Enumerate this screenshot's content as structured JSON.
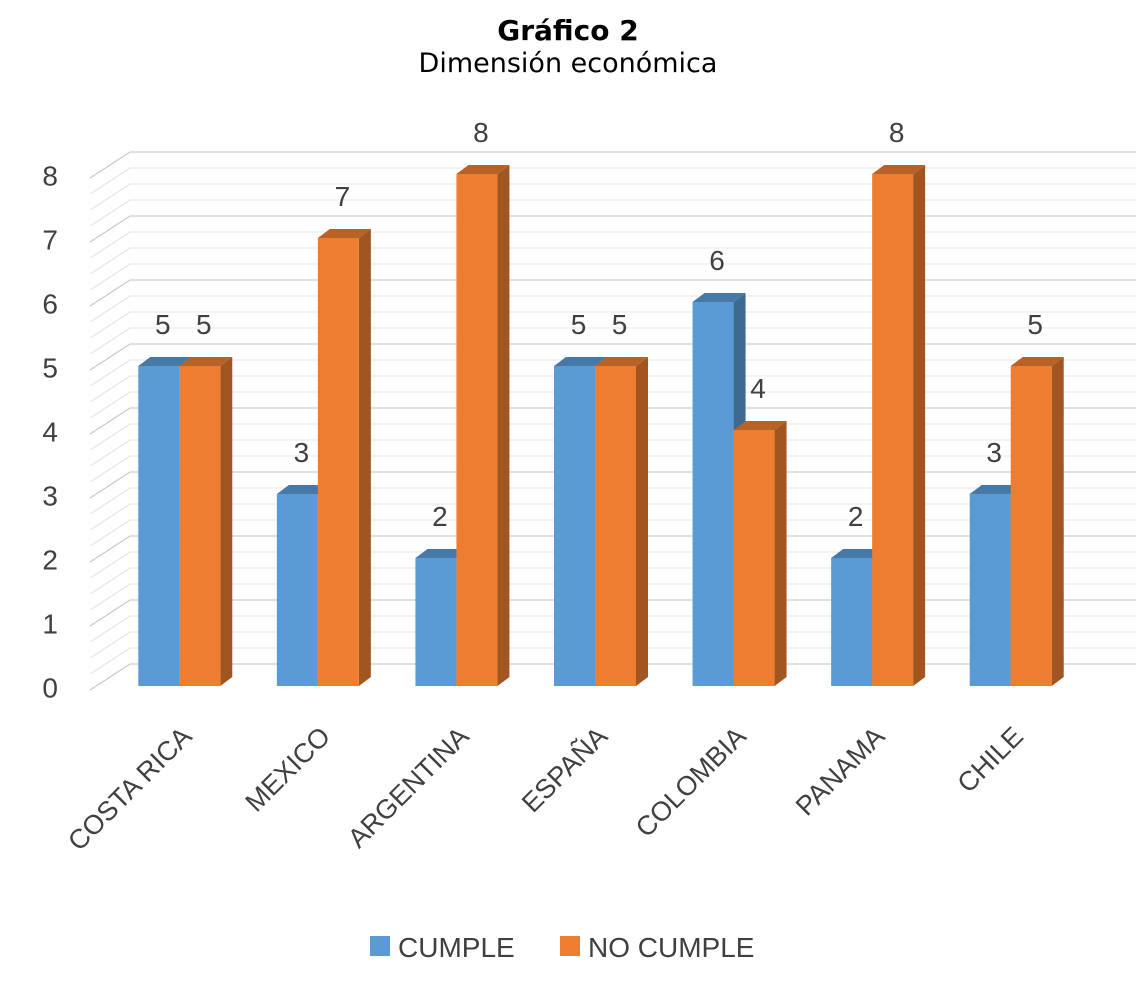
{
  "chart_data": {
    "type": "bar",
    "title": "Gráfico 2",
    "subtitle": "Dimensión económica",
    "categories": [
      "COSTA RICA",
      "MEXICO",
      "ARGENTINA",
      "ESPAÑA",
      "COLOMBIA",
      "PANAMA",
      "CHILE"
    ],
    "series": [
      {
        "name": "CUMPLE",
        "values": [
          5,
          3,
          2,
          5,
          6,
          2,
          3
        ],
        "color": "#5b9bd5"
      },
      {
        "name": "NO CUMPLE",
        "values": [
          5,
          7,
          8,
          5,
          4,
          8,
          5
        ],
        "color": "#ed7d31"
      }
    ],
    "ylim": [
      0,
      8
    ],
    "yticks": [
      0,
      1,
      2,
      3,
      4,
      5,
      6,
      7,
      8
    ],
    "grid": true,
    "style": "3d-column",
    "legend_position": "bottom"
  }
}
